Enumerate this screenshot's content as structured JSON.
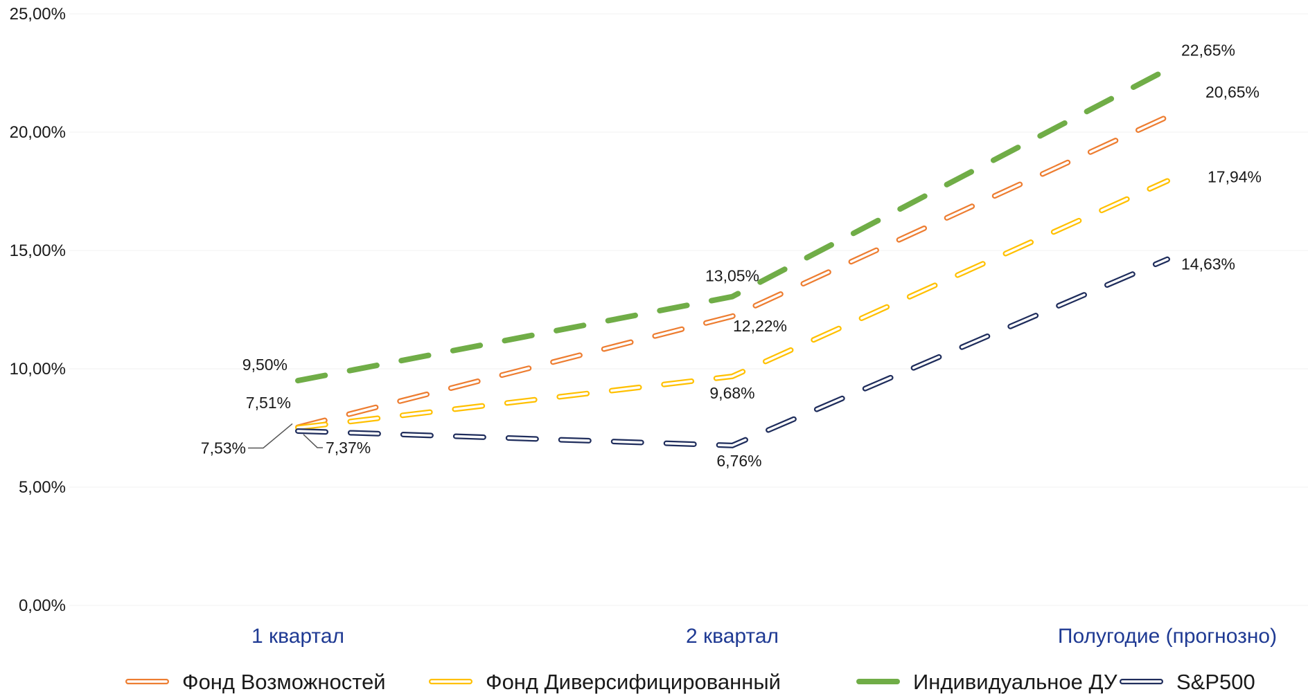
{
  "chart_data": {
    "type": "line",
    "categories": [
      "1 квартал",
      "2 квартал",
      "Полугодие (прогнозно)"
    ],
    "ylim": [
      0,
      25
    ],
    "yticks": [
      0,
      5,
      10,
      15,
      20,
      25
    ],
    "ytick_labels": [
      "0,00%",
      "5,00%",
      "10,00%",
      "15,00%",
      "20,00%",
      "25,00%"
    ],
    "grid": true,
    "legend_position": "bottom",
    "series": [
      {
        "name": "Фонд Возможностей",
        "values": [
          7.53,
          12.22,
          20.65
        ],
        "labels": [
          "7,53%",
          "12,22%",
          "20,65%"
        ],
        "color": "#ed7d31",
        "style": "hollow-dashed"
      },
      {
        "name": "Фонд Диверсифицированный",
        "values": [
          7.51,
          9.68,
          17.94
        ],
        "labels": [
          "7,51%",
          "9,68%",
          "17,94%"
        ],
        "color": "#ffc000",
        "style": "hollow-dashed"
      },
      {
        "name": "Индивидуальное ДУ",
        "values": [
          9.5,
          13.05,
          22.65
        ],
        "labels": [
          "9,50%",
          "13,05%",
          "22,65%"
        ],
        "color": "#70ad47",
        "style": "solid-dashed"
      },
      {
        "name": "S&P500",
        "values": [
          7.37,
          6.76,
          14.63
        ],
        "labels": [
          "7,37%",
          "6,76%",
          "14,63%"
        ],
        "color": "#1f2d5c",
        "style": "hollow-dashed"
      }
    ]
  }
}
